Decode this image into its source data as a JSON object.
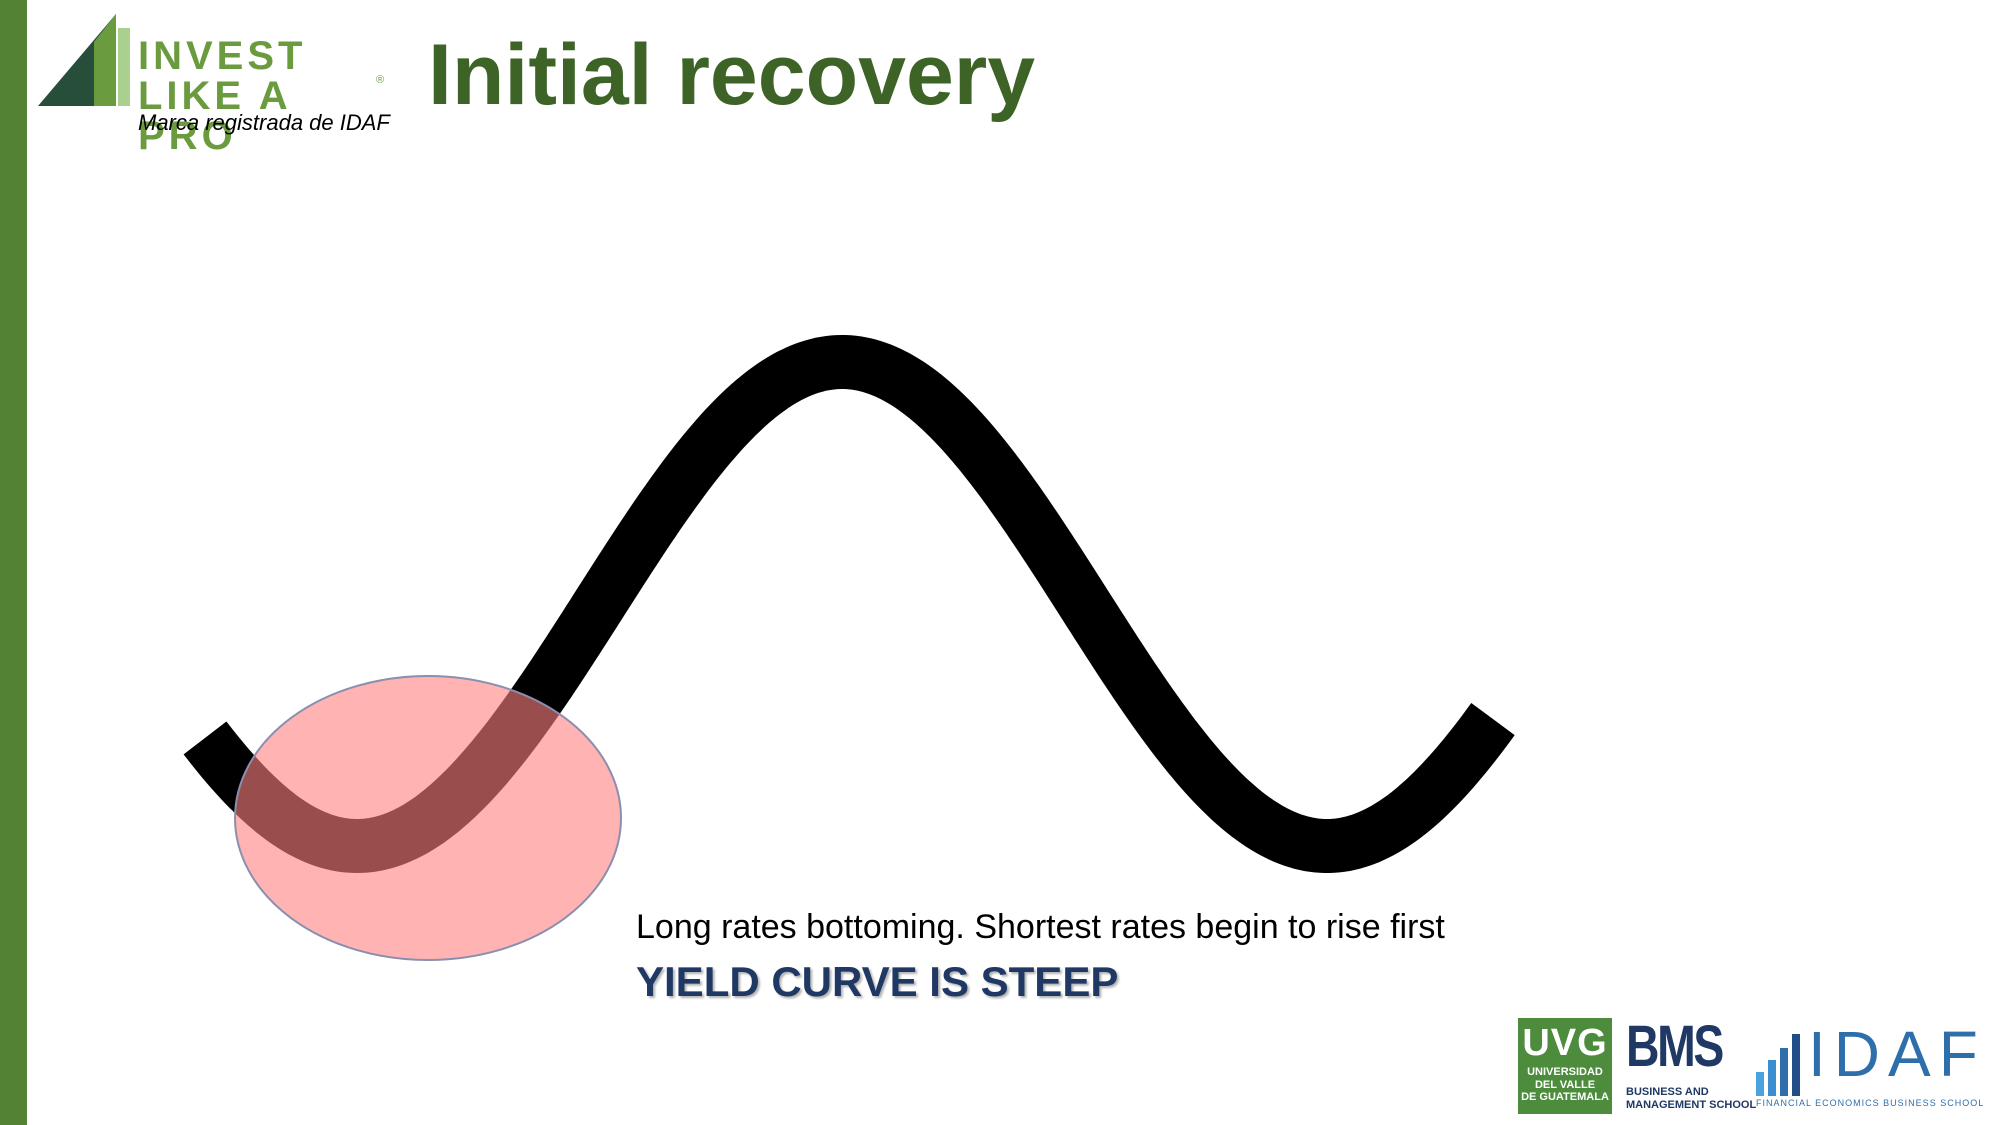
{
  "brand": {
    "logo_line1": "INVEST",
    "logo_line2": "LIKE A PRO",
    "registered_mark": "®",
    "logo_subtitle": "Marca registrada de IDAF",
    "accent_color": "#548235"
  },
  "slide": {
    "title": "Initial recovery",
    "caption": "Long rates bottoming. Shortest rates begin to rise first",
    "headline": "YIELD CURVE IS STEEP"
  },
  "diagram": {
    "curve_color": "#000000",
    "highlight_fill": "#ff8080",
    "highlight_opacity": 0.6,
    "highlight_stroke": "#8a8fb0"
  },
  "footer_logos": {
    "uvg": {
      "main": "UVG",
      "line1": "UNIVERSIDAD",
      "line2": "DEL VALLE",
      "line3": "DE GUATEMALA"
    },
    "bms": {
      "main": "BMS",
      "line1": "BUSINESS AND",
      "line2": "MANAGEMENT SCHOOL"
    },
    "idaf": {
      "main": "IDAF",
      "tagline": "FINANCIAL ECONOMICS BUSINESS SCHOOL"
    }
  }
}
